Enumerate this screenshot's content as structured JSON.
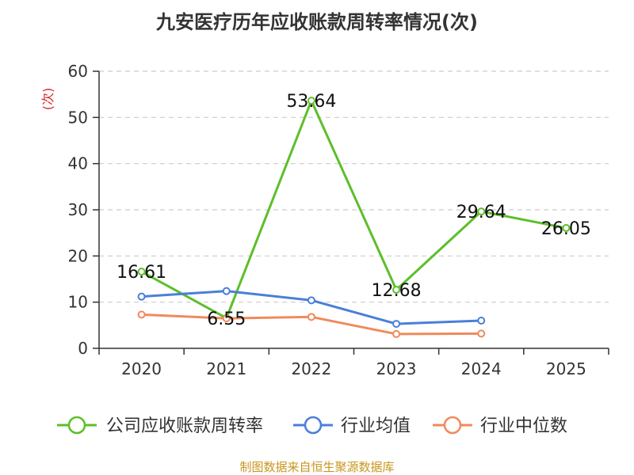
{
  "chart_data": {
    "type": "line",
    "title": "九安医疗历年应收账款周转率情况(次)",
    "ylabel": "(次)",
    "xlabel": "",
    "categories": [
      "2020",
      "2021",
      "2022",
      "2023",
      "2024",
      "2025"
    ],
    "ylim": [
      0,
      60
    ],
    "yticks": [
      0,
      10,
      20,
      30,
      40,
      50,
      60
    ],
    "grid": true,
    "legend_position": "bottom",
    "series": [
      {
        "name": "公司应收账款周转率",
        "color": "#5cbf2a",
        "values": [
          16.61,
          6.55,
          53.64,
          12.68,
          29.64,
          26.05
        ],
        "labels": [
          "16.61",
          "6.55",
          "53.64",
          "12.68",
          "29.64",
          "26.05"
        ]
      },
      {
        "name": "行业均值",
        "color": "#4a7fd9",
        "values": [
          11.2,
          12.4,
          10.4,
          5.3,
          6.0,
          null
        ]
      },
      {
        "name": "行业中位数",
        "color": "#f08a5d",
        "values": [
          7.3,
          6.5,
          6.8,
          3.1,
          3.2,
          null
        ]
      }
    ]
  },
  "source": "制图数据来自恒生聚源数据库"
}
